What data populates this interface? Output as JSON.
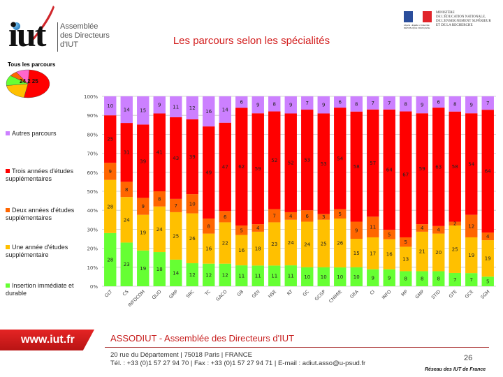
{
  "header": {
    "logo": {
      "wordmark": "iut",
      "lines": [
        "Assemblée",
        "des Directeurs",
        "d'IUT"
      ]
    },
    "ministry": {
      "caption": "Liberté • Égalité • Fraternité RÉPUBLIQUE FRANÇAISE",
      "lines": [
        "MINISTÈRE",
        "DE L'ÉDUCATION NATIONALE,",
        "DE L'ENSEIGNEMENT SUPÉRIEUR",
        "ET DE LA RECHERCHE"
      ]
    },
    "title": "Les parcours selon les spécialités"
  },
  "pie": {
    "title": "Tous les parcours",
    "label": "24 2 25",
    "slices": [
      {
        "name": "Trois années d'études supplémentaires",
        "value": 52,
        "color": "#ff0000"
      },
      {
        "name": "Une année d'études supplémentaire",
        "value": 20,
        "color": "#ffc000"
      },
      {
        "name": "Insertion immédiate et durable",
        "value": 12,
        "color": "#66ff33"
      },
      {
        "name": "Deux années d'études supplémentaires",
        "value": 6,
        "color": "#ff6600"
      },
      {
        "name": "Autres parcours",
        "value": 10,
        "color": "#ff66cc"
      }
    ]
  },
  "legend": [
    {
      "label": "Autres parcours",
      "color": "#cc80ff"
    },
    {
      "label": "Trois années d'études supplémentaires",
      "color": "#ff0000"
    },
    {
      "label": "Deux années d'études supplémentaires",
      "color": "#ff6600"
    },
    {
      "label": "Une année d'études supplémentaire",
      "color": "#ffc000"
    },
    {
      "label": "Insertion immédiate et durable",
      "color": "#66ff33"
    }
  ],
  "chart_data": {
    "type": "bar",
    "stacked": "percent",
    "title": "Les parcours selon les spécialités",
    "xlabel": "",
    "ylabel": "",
    "ylim": [
      0,
      100
    ],
    "yticks": [
      "0%",
      "10%",
      "20%",
      "30%",
      "40%",
      "50%",
      "60%",
      "70%",
      "80%",
      "90%",
      "100%"
    ],
    "grid": true,
    "legend_position": "left",
    "categories": [
      "GLT",
      "CS",
      "INFOCOM",
      "QLIO",
      "GMP",
      "SRC",
      "TC",
      "GACO",
      "GB",
      "GEII",
      "HSE",
      "RT",
      "GC",
      "GCGP",
      "CHIMIE",
      "GEA",
      "CI",
      "INFO",
      "MP",
      "GMP",
      "STID",
      "GTE",
      "GCE",
      "SGM"
    ],
    "series": [
      {
        "name": "Insertion immédiate et durable",
        "color": "#66ff33",
        "values": [
          28,
          23,
          19,
          18,
          14,
          12,
          12,
          12,
          11,
          11,
          11,
          11,
          10,
          10,
          10,
          10,
          9,
          9,
          8,
          8,
          8,
          7,
          7,
          5
        ]
      },
      {
        "name": "Une année d'études supplémentaire",
        "color": "#ffc000",
        "values": [
          28,
          24,
          19,
          24,
          25,
          26,
          16,
          22,
          16,
          18,
          23,
          24,
          24,
          25,
          26,
          15,
          17,
          16,
          13,
          21,
          20,
          25,
          19,
          19
        ]
      },
      {
        "name": "Deux années d'études supplémentaires",
        "color": "#ff6600",
        "values": [
          9,
          8,
          9,
          8,
          7,
          10,
          8,
          6,
          5,
          4,
          7,
          4,
          6,
          3,
          5,
          9,
          11,
          5,
          5,
          4,
          4,
          2,
          12,
          4
        ]
      },
      {
        "name": "Trois années d'études supplémentaires",
        "color": "#ff0000",
        "values": [
          25,
          31,
          39,
          41,
          43,
          39,
          49,
          47,
          62,
          59,
          52,
          52,
          53,
          53,
          54,
          58,
          57,
          64,
          67,
          59,
          63,
          58,
          54,
          64
        ]
      },
      {
        "name": "Autres parcours",
        "color": "#cc80ff",
        "values": [
          10,
          14,
          15,
          9,
          11,
          12,
          16,
          14,
          6,
          9,
          8,
          9,
          7,
          9,
          6,
          8,
          7,
          7,
          8,
          9,
          6,
          8,
          9,
          7
        ]
      }
    ]
  },
  "footer": {
    "url": "www.iut.fr",
    "org": "ASSODIUT - Assemblée des Directeurs d'IUT",
    "address": "20 rue du Département | 75018 Paris | FRANCE",
    "contact": "Tél. : +33 (0)1 57 27 94 70 | Fax : +33 (0)1 57 27 94 71 | E-mail : adiut.asso@u-psud.fr",
    "page_number": "26",
    "network": "Réseau des IUT de France"
  }
}
